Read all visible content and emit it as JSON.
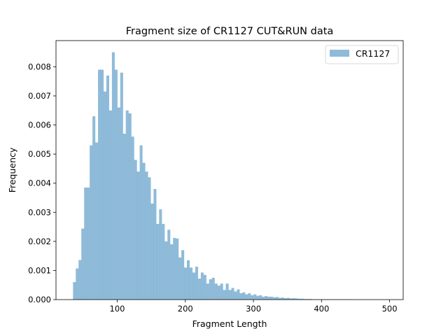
{
  "chart_data": {
    "type": "bar",
    "title": "Fragment size of CR1127 CUT&RUN data",
    "xlabel": "Fragment Length",
    "ylabel": "Frequency",
    "xlim": [
      10,
      520
    ],
    "ylim": [
      0,
      0.0089
    ],
    "xticks": [
      100,
      200,
      300,
      400,
      500
    ],
    "xtick_labels": [
      "100",
      "200",
      "300",
      "400",
      "500"
    ],
    "yticks": [
      0,
      0.001,
      0.002,
      0.003,
      0.004,
      0.005,
      0.006,
      0.007,
      0.008
    ],
    "ytick_labels": [
      "0.000",
      "0.001",
      "0.002",
      "0.003",
      "0.004",
      "0.005",
      "0.006",
      "0.007",
      "0.008"
    ],
    "legend_position": "top-right",
    "grid": false,
    "bin_start": 35,
    "bin_width": 4.08,
    "series": [
      {
        "name": "CR1127",
        "color": "#1f77b4",
        "opacity": 0.5,
        "values": [
          0.0006,
          0.00107,
          0.00136,
          0.00244,
          0.00385,
          0.00385,
          0.0053,
          0.0063,
          0.0054,
          0.0079,
          0.0079,
          0.00715,
          0.0077,
          0.0065,
          0.0085,
          0.0079,
          0.0066,
          0.0078,
          0.0057,
          0.0065,
          0.0064,
          0.0056,
          0.0048,
          0.0044,
          0.0053,
          0.0047,
          0.0044,
          0.0042,
          0.0033,
          0.0038,
          0.0026,
          0.0031,
          0.0026,
          0.002,
          0.0024,
          0.0019,
          0.00212,
          0.0021,
          0.00145,
          0.0017,
          0.0011,
          0.00135,
          0.0011,
          0.00093,
          0.00113,
          0.00072,
          0.00093,
          0.00085,
          0.00055,
          0.0007,
          0.00075,
          0.00055,
          0.00048,
          0.00055,
          0.00033,
          0.00055,
          0.00033,
          0.0004,
          0.00028,
          0.00035,
          0.00022,
          0.00025,
          0.00018,
          0.00022,
          0.00015,
          0.00018,
          0.00013,
          0.00015,
          0.0001,
          0.00012,
          0.0001,
          0.0001,
          8e-05,
          9e-05,
          6e-05,
          7e-05,
          5e-05,
          6e-05,
          4e-05,
          5e-05,
          4e-05,
          3e-05,
          3e-05,
          2e-05,
          2e-05,
          2e-05,
          1e-05,
          1e-05,
          1e-05,
          1e-05,
          1e-05,
          1e-05,
          1e-05,
          1e-05,
          1e-05,
          1e-05,
          1e-05,
          1e-05,
          1e-05,
          1e-05
        ]
      }
    ]
  }
}
